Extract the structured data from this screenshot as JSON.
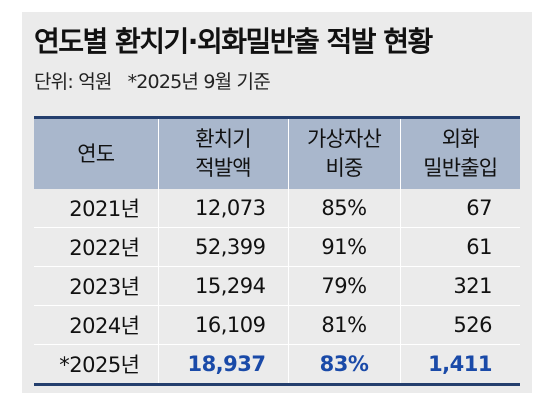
{
  "header": {
    "title": "연도별 환치기·외화밀반출 적발 현황",
    "unit_label": "단위: 억원",
    "note": "*2025년 9월 기준"
  },
  "table": {
    "columns": [
      {
        "lines": [
          "연도"
        ]
      },
      {
        "lines": [
          "환치기",
          "적발액"
        ]
      },
      {
        "lines": [
          "가상자산",
          "비중"
        ]
      },
      {
        "lines": [
          "외화",
          "밀반출입"
        ]
      }
    ],
    "rows": [
      {
        "year": "2021년",
        "amount": "12,073",
        "share": "85%",
        "count": "67"
      },
      {
        "year": "2022년",
        "amount": "52,399",
        "share": "91%",
        "count": "61"
      },
      {
        "year": "2023년",
        "amount": "15,294",
        "share": "79%",
        "count": "321"
      },
      {
        "year": "2024년",
        "amount": "16,109",
        "share": "81%",
        "count": "526"
      },
      {
        "year": "*2025년",
        "amount": "18,937",
        "share": "83%",
        "count": "1,411"
      }
    ]
  },
  "colors": {
    "header_bg": "#a9b7cc",
    "border_dark": "#243f6e",
    "highlight_text": "#1a4aa8",
    "card_bg": "#ebebeb"
  }
}
